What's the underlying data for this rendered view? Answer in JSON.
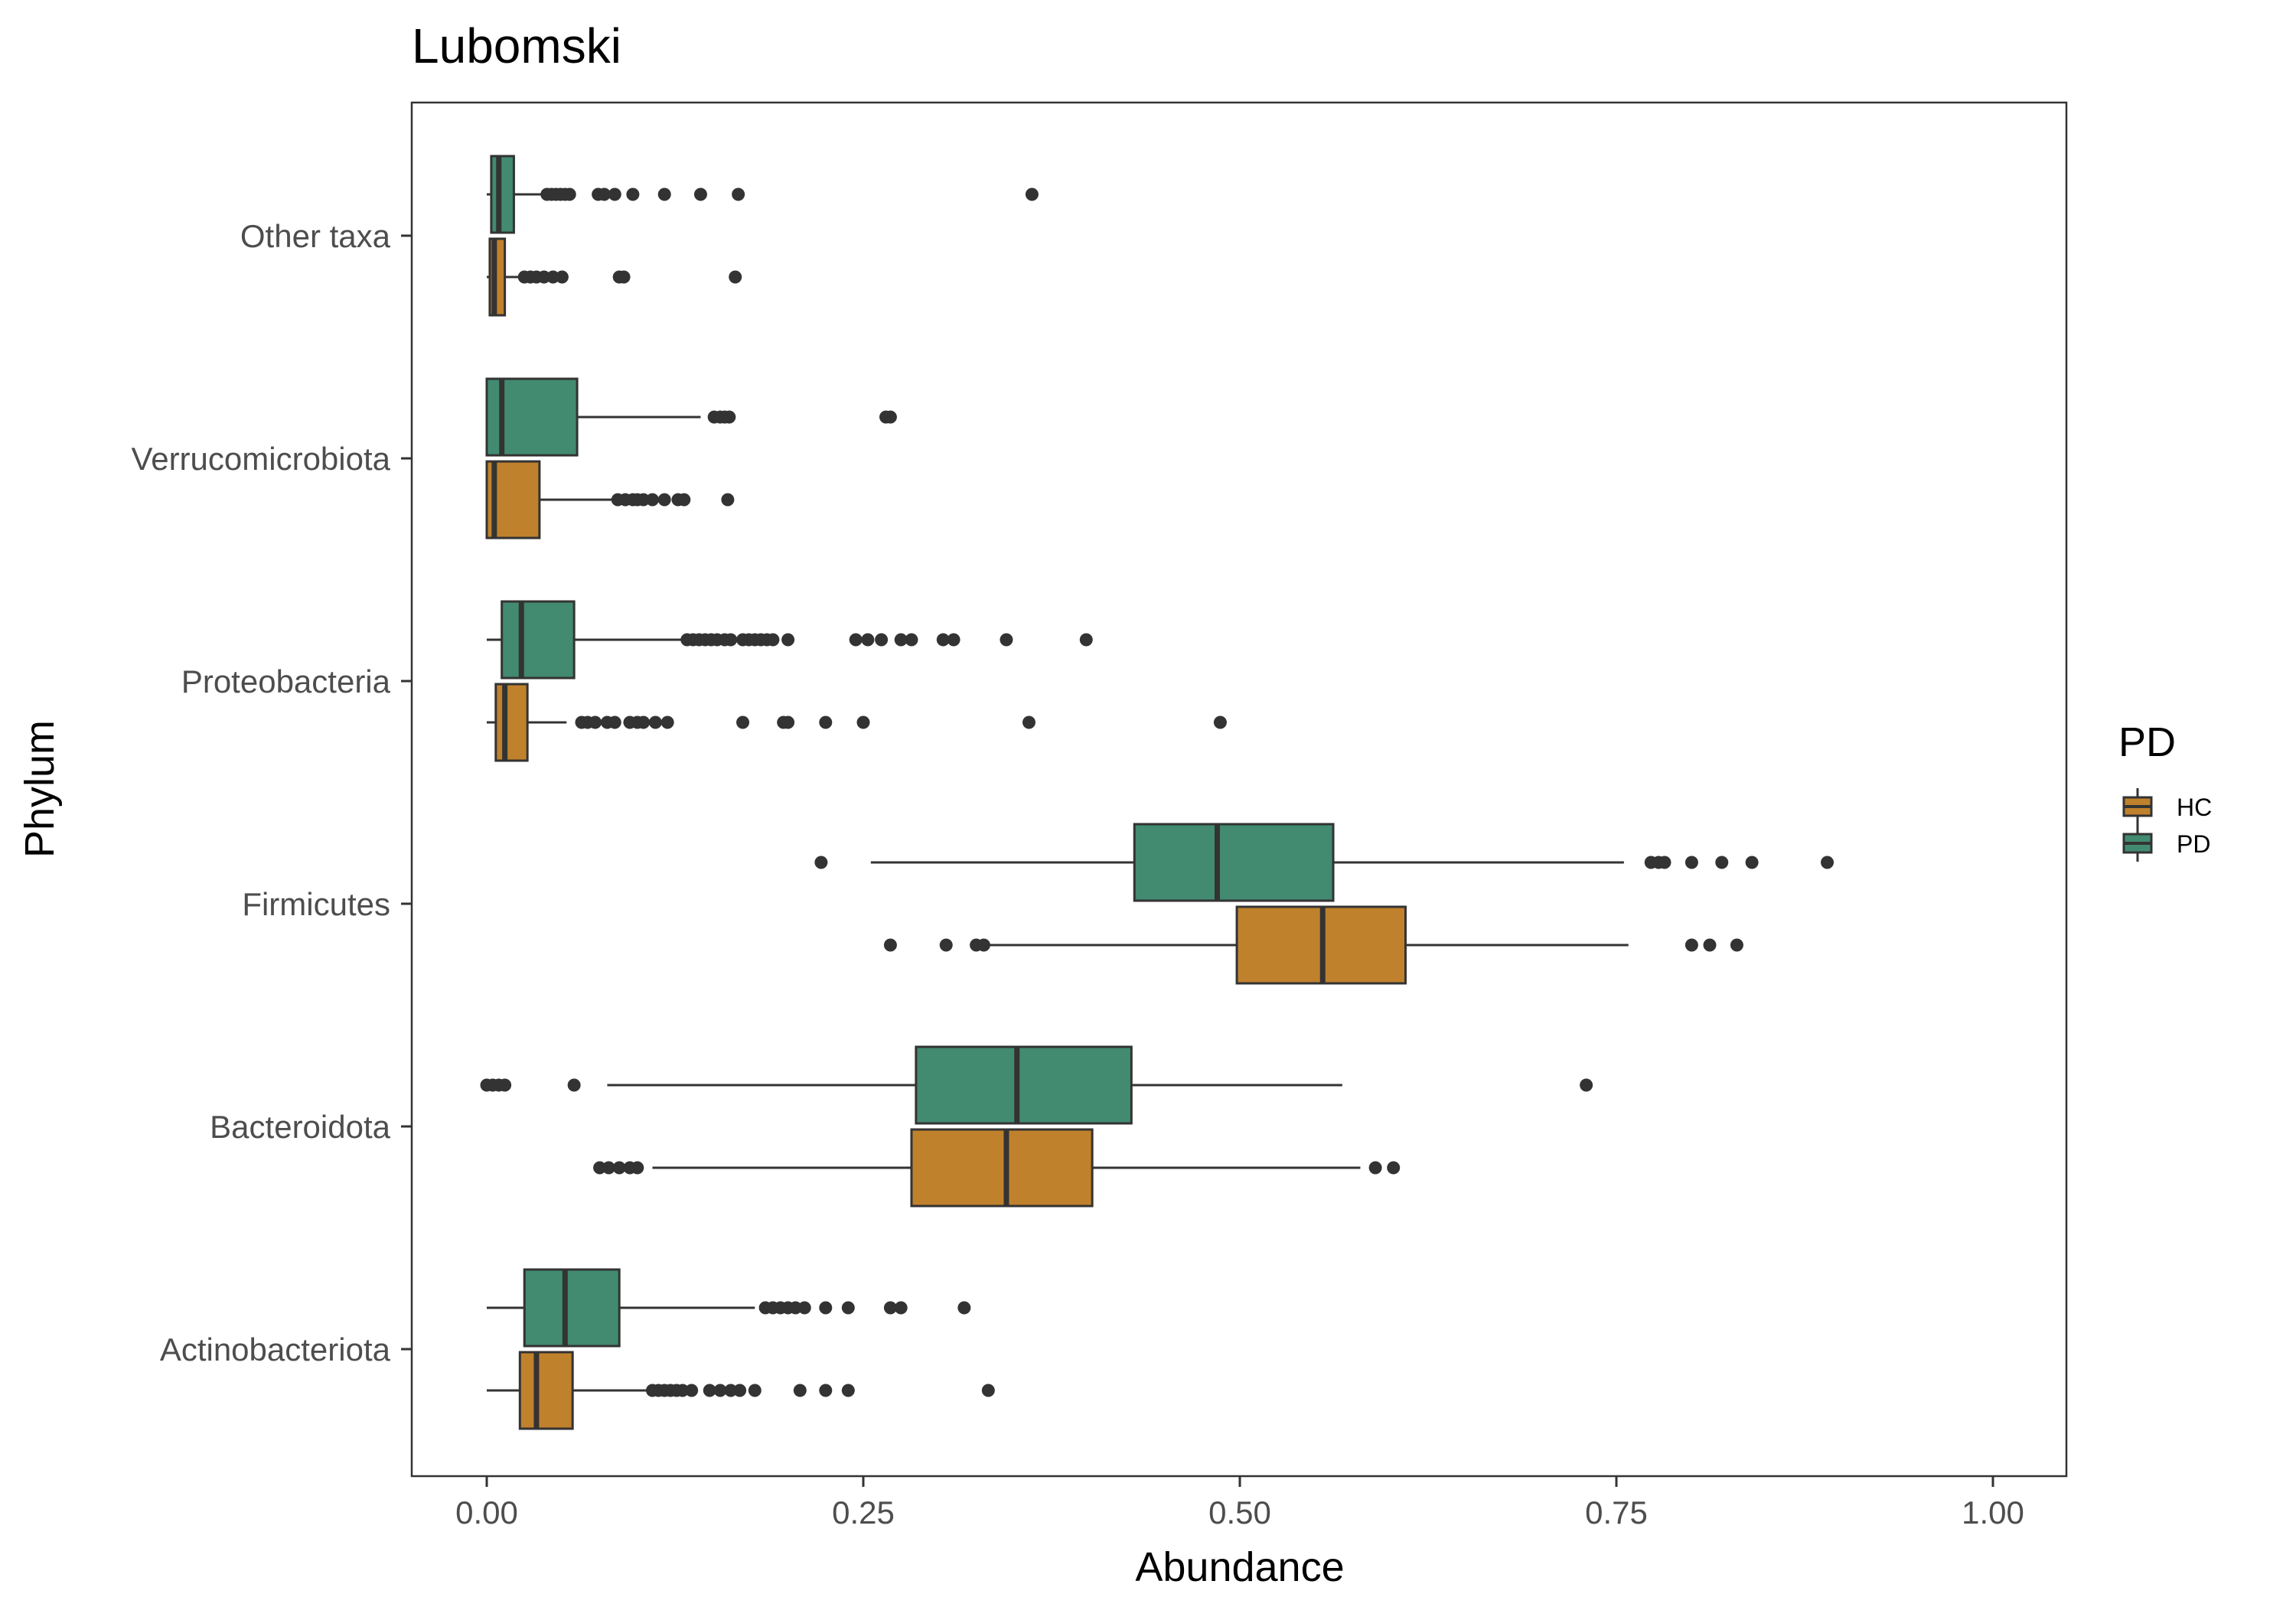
{
  "chart_data": {
    "type": "boxplot",
    "orientation": "horizontal",
    "title": "Lubomski",
    "xlabel": "Abundance",
    "ylabel": "Phylum",
    "xlim": [
      0,
      1
    ],
    "x_ticks": [
      "0.00",
      "0.25",
      "0.50",
      "0.75",
      "1.00"
    ],
    "x_tick_values": [
      0,
      0.25,
      0.5,
      0.75,
      1.0
    ],
    "grid": false,
    "legend": {
      "title": "PD",
      "position": "right"
    },
    "series": [
      {
        "name": "HC",
        "color": "#C0812C"
      },
      {
        "name": "PD",
        "color": "#428B70"
      }
    ],
    "categories": [
      "Other taxa",
      "Verrucomicrobiota",
      "Proteobacteria",
      "Firmicutes",
      "Bacteroidota",
      "Actinobacteriota"
    ],
    "boxes": [
      {
        "category": "Other taxa",
        "group": "PD",
        "whisker_low": 0.0,
        "q1": 0.003,
        "median": 0.008,
        "q3": 0.018,
        "whisker_high": 0.038,
        "outliers": [
          0.04,
          0.043,
          0.046,
          0.049,
          0.052,
          0.055,
          0.074,
          0.078,
          0.085,
          0.097,
          0.118,
          0.142,
          0.167,
          0.362
        ]
      },
      {
        "category": "Other taxa",
        "group": "HC",
        "whisker_low": 0.0,
        "q1": 0.002,
        "median": 0.005,
        "q3": 0.012,
        "whisker_high": 0.022,
        "outliers": [
          0.025,
          0.029,
          0.033,
          0.038,
          0.044,
          0.05,
          0.088,
          0.091,
          0.165
        ]
      },
      {
        "category": "Verrucomicrobiota",
        "group": "PD",
        "whisker_low": 0.0,
        "q1": 0.0,
        "median": 0.01,
        "q3": 0.06,
        "whisker_high": 0.142,
        "outliers": [
          0.151,
          0.155,
          0.158,
          0.161,
          0.265,
          0.268
        ]
      },
      {
        "category": "Verrucomicrobiota",
        "group": "HC",
        "whisker_low": 0.0,
        "q1": 0.0,
        "median": 0.005,
        "q3": 0.035,
        "whisker_high": 0.085,
        "outliers": [
          0.087,
          0.092,
          0.097,
          0.1,
          0.104,
          0.11,
          0.118,
          0.127,
          0.131,
          0.16
        ]
      },
      {
        "category": "Proteobacteria",
        "group": "PD",
        "whisker_low": 0.0,
        "q1": 0.01,
        "median": 0.023,
        "q3": 0.058,
        "whisker_high": 0.13,
        "outliers": [
          0.133,
          0.137,
          0.141,
          0.145,
          0.149,
          0.153,
          0.158,
          0.162,
          0.17,
          0.174,
          0.178,
          0.182,
          0.186,
          0.19,
          0.2,
          0.245,
          0.253,
          0.262,
          0.275,
          0.282,
          0.303,
          0.31,
          0.345,
          0.398
        ]
      },
      {
        "category": "Proteobacteria",
        "group": "HC",
        "whisker_low": 0.0,
        "q1": 0.006,
        "median": 0.012,
        "q3": 0.027,
        "whisker_high": 0.053,
        "outliers": [
          0.063,
          0.067,
          0.072,
          0.08,
          0.085,
          0.095,
          0.1,
          0.104,
          0.112,
          0.12,
          0.17,
          0.197,
          0.2,
          0.225,
          0.25,
          0.36,
          0.487
        ]
      },
      {
        "category": "Firmicutes",
        "group": "PD",
        "whisker_low": 0.255,
        "q1": 0.43,
        "median": 0.485,
        "q3": 0.562,
        "whisker_high": 0.755,
        "outliers": [
          0.222,
          0.773,
          0.778,
          0.782,
          0.8,
          0.82,
          0.84,
          0.89
        ]
      },
      {
        "category": "Firmicutes",
        "group": "HC",
        "whisker_low": 0.33,
        "q1": 0.498,
        "median": 0.555,
        "q3": 0.61,
        "whisker_high": 0.758,
        "outliers": [
          0.268,
          0.305,
          0.325,
          0.33,
          0.8,
          0.812,
          0.83
        ]
      },
      {
        "category": "Bacteroidota",
        "group": "PD",
        "whisker_low": 0.08,
        "q1": 0.285,
        "median": 0.352,
        "q3": 0.428,
        "whisker_high": 0.568,
        "outliers": [
          0.0,
          0.004,
          0.008,
          0.012,
          0.058,
          0.73
        ]
      },
      {
        "category": "Bacteroidota",
        "group": "HC",
        "whisker_low": 0.11,
        "q1": 0.282,
        "median": 0.345,
        "q3": 0.402,
        "whisker_high": 0.58,
        "outliers": [
          0.075,
          0.081,
          0.088,
          0.095,
          0.1,
          0.59,
          0.602
        ]
      },
      {
        "category": "Actinobacteriota",
        "group": "PD",
        "whisker_low": 0.0,
        "q1": 0.025,
        "median": 0.052,
        "q3": 0.088,
        "whisker_high": 0.178,
        "outliers": [
          0.185,
          0.19,
          0.195,
          0.2,
          0.205,
          0.211,
          0.225,
          0.24,
          0.268,
          0.275,
          0.317
        ]
      },
      {
        "category": "Actinobacteriota",
        "group": "HC",
        "whisker_low": 0.0,
        "q1": 0.022,
        "median": 0.033,
        "q3": 0.057,
        "whisker_high": 0.108,
        "outliers": [
          0.11,
          0.114,
          0.118,
          0.122,
          0.126,
          0.13,
          0.136,
          0.148,
          0.155,
          0.162,
          0.168,
          0.178,
          0.208,
          0.225,
          0.24,
          0.333
        ]
      }
    ]
  }
}
